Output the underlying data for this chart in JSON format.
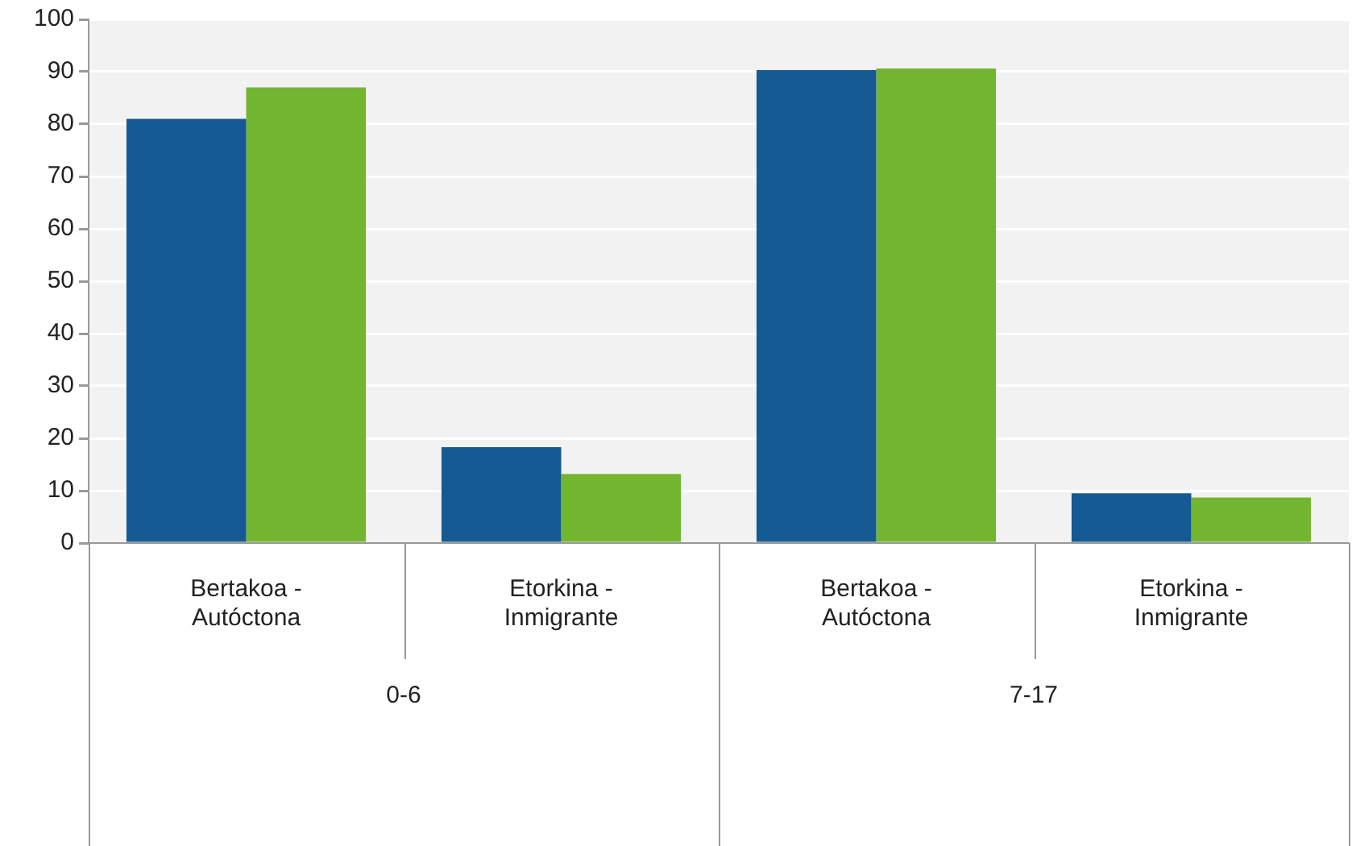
{
  "chart_data": {
    "type": "bar",
    "categories": [
      "Bertakoa - Autóctona",
      "Etorkina - Inmigrante",
      "Bertakoa - Autóctona",
      "Etorkina - Inmigrante"
    ],
    "series": [
      {
        "color": "#155a93",
        "values": [
          81,
          18.3,
          90.3,
          9.5
        ]
      },
      {
        "color": "#72b62f",
        "values": [
          87,
          13.2,
          90.6,
          8.7
        ]
      }
    ],
    "ylim": [
      0,
      100
    ],
    "yticks": [
      0,
      10,
      20,
      30,
      40,
      50,
      60,
      70,
      80,
      90,
      100
    ],
    "grid": "y",
    "legend": false,
    "annotations": [
      "0-6",
      "7-17"
    ]
  }
}
